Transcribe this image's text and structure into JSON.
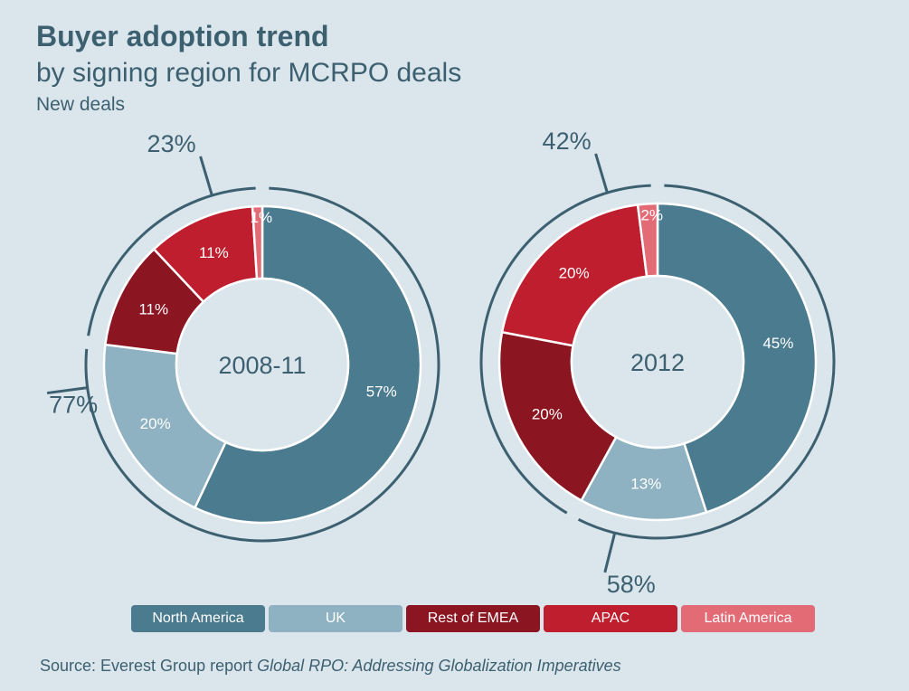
{
  "title": "Buyer adoption trend",
  "subtitle": "by signing region for MCRPO deals",
  "subsubtitle": "New deals",
  "source": {
    "prefix": "Source: Everest Group report ",
    "italic": "Global RPO: Addressing Globalization Imperatives"
  },
  "colors": {
    "North America": "#4b7b8f",
    "UK": "#8fb2c2",
    "Rest of EMEA": "#8b1622",
    "APAC": "#be1e2d",
    "Latin America": "#e36b76",
    "text": "#3d6070",
    "background": "#dae6ec"
  },
  "chart_data": {
    "type": "donut",
    "legend_position": "bottom",
    "categories": [
      "North America",
      "UK",
      "Rest of EMEA",
      "APAC",
      "Latin America"
    ],
    "charts": [
      {
        "label": "2008-11",
        "values": [
          57,
          20,
          11,
          11,
          1
        ],
        "labels": [
          "57%",
          "20%",
          "11%",
          "11%",
          "1%"
        ],
        "group_arcs": [
          {
            "value": 77,
            "label": "77%"
          },
          {
            "value": 23,
            "label": "23%"
          }
        ]
      },
      {
        "label": "2012",
        "values": [
          45,
          13,
          20,
          20,
          2
        ],
        "labels": [
          "45%",
          "13%",
          "20%",
          "20%",
          "2%"
        ],
        "group_arcs": [
          {
            "value": 58,
            "label": "58%"
          },
          {
            "value": 42,
            "label": "42%"
          }
        ]
      }
    ]
  }
}
